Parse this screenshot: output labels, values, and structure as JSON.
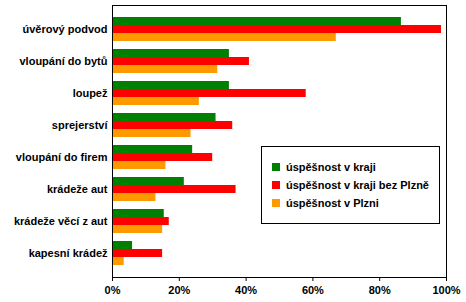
{
  "chart_data": {
    "type": "bar",
    "orientation": "horizontal",
    "categories": [
      "úvěrový podvod",
      "vloupání do bytů",
      "loupež",
      "sprejerství",
      "vloupání do firem",
      "krádeže aut",
      "krádeže věcí z aut",
      "kapesní krádež"
    ],
    "series": [
      {
        "name": "úspěšnost v kraji",
        "color": "#008000",
        "values": [
          86.5,
          35,
          35,
          31,
          24,
          21.5,
          15.5,
          6
        ]
      },
      {
        "name": "úspěšnost v kraji bez Plzně",
        "color": "#ff0000",
        "values": [
          98.5,
          41,
          58,
          36,
          30,
          37,
          17,
          15
        ]
      },
      {
        "name": "úspěšnost v Plzni",
        "color": "#ff9900",
        "values": [
          67,
          31.5,
          26,
          23.5,
          16,
          13,
          15,
          3.5
        ]
      }
    ],
    "xlim": [
      0,
      100
    ],
    "xticks": [
      {
        "value": 0,
        "label": "0%"
      },
      {
        "value": 20,
        "label": "20%"
      },
      {
        "value": 40,
        "label": "40%"
      },
      {
        "value": 60,
        "label": "60%"
      },
      {
        "value": 80,
        "label": "80%"
      },
      {
        "value": 100,
        "label": "100%"
      }
    ],
    "grid": false,
    "legend": "right"
  }
}
